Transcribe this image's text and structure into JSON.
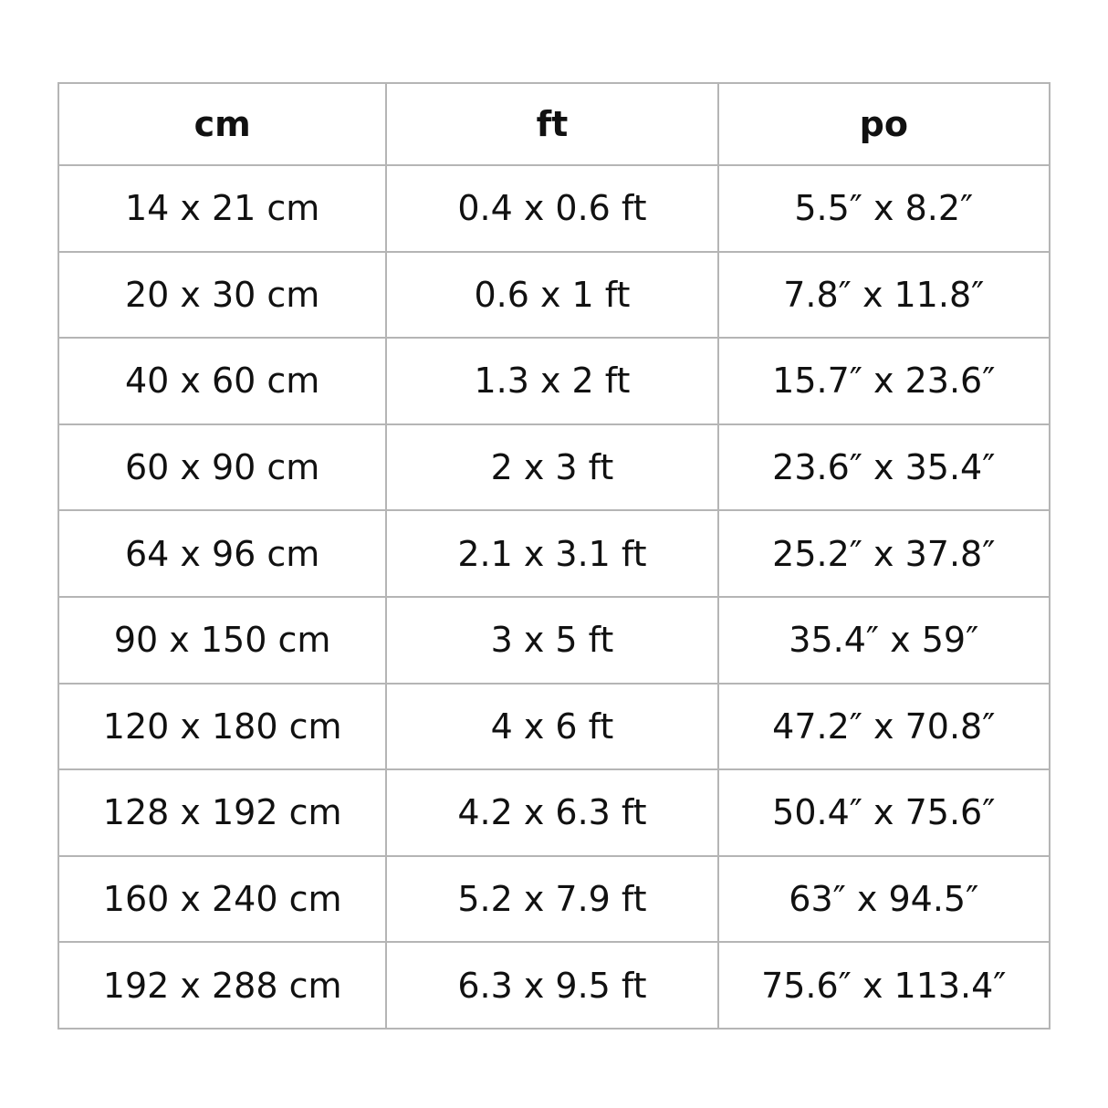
{
  "headers": [
    "cm",
    "ft",
    "po"
  ],
  "rows": [
    [
      "14 x 21 cm",
      "0.4 x 0.6 ft",
      "5.5″ x 8.2″"
    ],
    [
      "20 x 30 cm",
      "0.6 x 1 ft",
      "7.8″ x 11.8″"
    ],
    [
      "40 x 60 cm",
      "1.3 x 2 ft",
      "15.7″ x 23.6″"
    ],
    [
      "60 x 90 cm",
      "2 x 3 ft",
      "23.6″ x 35.4″"
    ],
    [
      "64 x 96 cm",
      "2.1 x 3.1 ft",
      "25.2″ x 37.8″"
    ],
    [
      "90 x 150 cm",
      "3 x 5 ft",
      "35.4″ x 59″"
    ],
    [
      "120 x 180 cm",
      "4 x 6 ft",
      "47.2″ x 70.8″"
    ],
    [
      "128 x 192 cm",
      "4.2 x 6.3 ft",
      "50.4″ x 75.6″"
    ],
    [
      "160 x 240 cm",
      "5.2 x 7.9 ft",
      "63″ x 94.5″"
    ],
    [
      "192 x 288 cm",
      "6.3 x 9.5 ft",
      "75.6″ x 113.4″"
    ]
  ]
}
